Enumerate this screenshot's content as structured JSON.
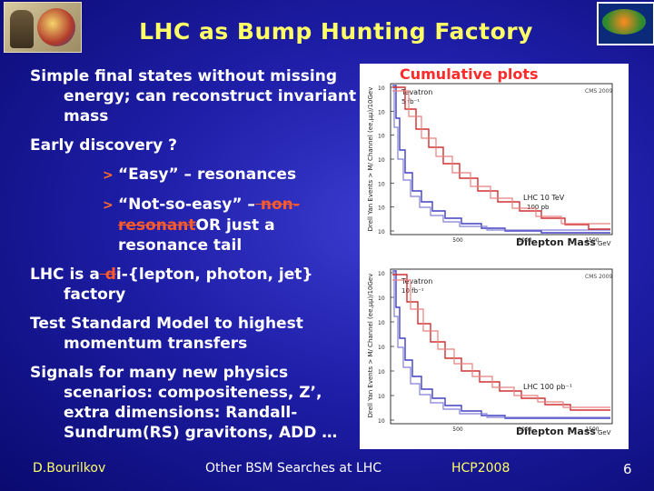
{
  "title": "LHC as Bump Hunting Factory",
  "plots_label": "Cumulative plots",
  "bullets": {
    "b1": "Simple final states without missing energy; can reconstruct invariant mass",
    "b2": "Early discovery ?",
    "b2_sub1": "“Easy” – resonances",
    "b2_sub2_pre": "“Not-so-easy” –",
    "b2_sub2_strike": " non-resonant",
    "b2_sub2_post": "OR just a resonance tail",
    "b3_pre": "LHC is a",
    "b3_strike": " d",
    "b3_post": "i-{lepton, photon, jet} factory",
    "b4": "Test Standard Model to highest momentum transfers",
    "b5": "Signals for many new physics scenarios: compositeness, Z’, extra dimensions: Randall-Sundrum(RS) gravitons, ADD …"
  },
  "plot_top": {
    "ylabel": "Drell Yan Events > M/ Channel (ee,μμ)/10Gev",
    "xlabel": "Dilepton Mass",
    "unit": "GeV",
    "tag": "CMS 2009",
    "leg1": "Tevatron",
    "leg1_lumi": "5 fb⁻¹",
    "leg2": "LHC 10 TeV",
    "leg2_lumi": "100 pb",
    "xticks": [
      "500",
      "1000",
      "1500"
    ],
    "yticks": [
      "10",
      "10",
      "10",
      "10",
      "10",
      "10",
      "10"
    ]
  },
  "plot_bottom": {
    "ylabel": "Drell Yan Events > M/ Channel (ee,μμ)/10Gev",
    "xlabel": "Dilepton Mass",
    "unit": "GeV",
    "tag": "CMS 2009",
    "leg1": "Tevatron",
    "leg1_lumi": "10 fb⁻¹",
    "leg2": "LHC 100 pb⁻¹",
    "xticks": [
      "500",
      "1000",
      "1500"
    ],
    "yticks": [
      "10",
      "10",
      "10",
      "10",
      "10",
      "10",
      "10"
    ]
  },
  "footer": {
    "author": "D.Bourilkov",
    "talk": "Other BSM Searches at LHC",
    "conference": "HCP2008",
    "page": "6"
  },
  "colors": {
    "title": "#ffff66",
    "accent": "#ff5a2a",
    "background": "#1e1ea8",
    "curve_red": "#d03030",
    "curve_blue": "#4040c0"
  }
}
